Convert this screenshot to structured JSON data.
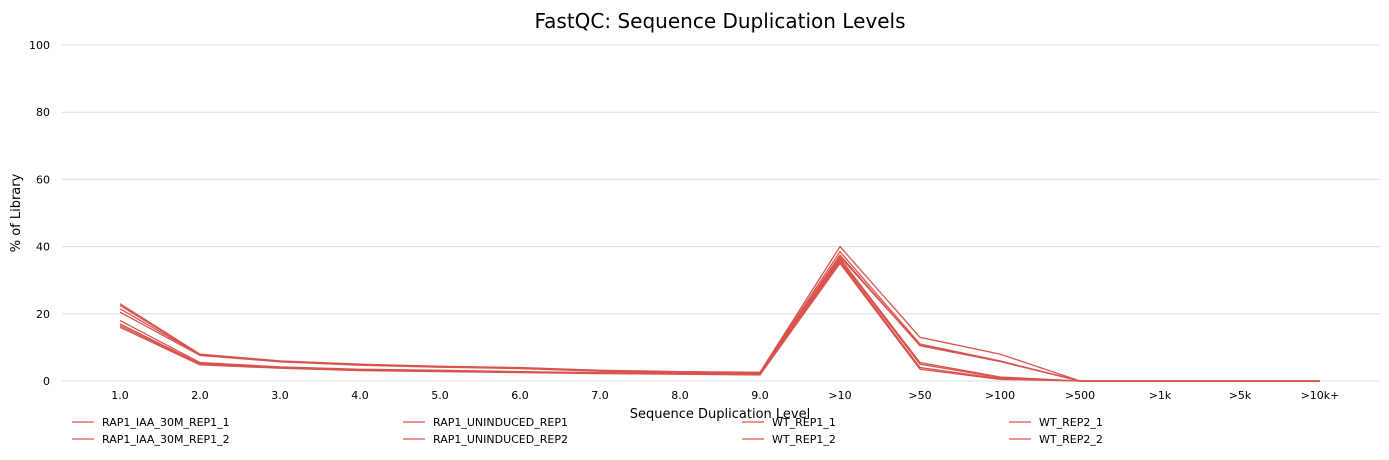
{
  "chart_data": {
    "type": "line",
    "title": "FastQC: Sequence Duplication Levels",
    "xlabel": "Sequence Duplication Level",
    "ylabel": "% of Library",
    "ylim": [
      0,
      100
    ],
    "yticks": [
      0,
      20,
      40,
      60,
      80,
      100
    ],
    "categories": [
      "1.0",
      "2.0",
      "3.0",
      "4.0",
      "5.0",
      "6.0",
      "7.0",
      "8.0",
      "9.0",
      ">10",
      ">50",
      ">100",
      ">500",
      ">1k",
      ">5k",
      ">10k+"
    ],
    "grid": true,
    "legend_position": "bottom",
    "series_color": "#d9534f",
    "series": [
      {
        "name": "RAP1_IAA_30M_REP1_1",
        "values": [
          23.0,
          8.0,
          6.0,
          5.0,
          4.4,
          4.0,
          3.2,
          2.8,
          2.6,
          40.0,
          13.0,
          8.0,
          0.0,
          0.0,
          0.0,
          0.0
        ]
      },
      {
        "name": "RAP1_IAA_30M_REP1_2",
        "values": [
          22.5,
          7.9,
          5.9,
          4.9,
          4.3,
          3.9,
          3.1,
          2.7,
          2.5,
          38.5,
          11.0,
          6.0,
          0.0,
          0.0,
          0.0,
          0.0
        ]
      },
      {
        "name": "RAP1_UNINDUCED_REP1",
        "values": [
          21.5,
          7.8,
          5.8,
          4.8,
          4.2,
          3.8,
          3.0,
          2.6,
          2.4,
          37.5,
          10.5,
          5.8,
          0.0,
          0.0,
          0.0,
          0.0
        ]
      },
      {
        "name": "RAP1_UNINDUCED_REP2",
        "values": [
          20.5,
          7.6,
          5.7,
          4.7,
          4.1,
          3.7,
          2.9,
          2.5,
          2.3,
          37.0,
          10.6,
          5.9,
          0.0,
          0.0,
          0.0,
          0.0
        ]
      },
      {
        "name": "WT_REP1_1",
        "values": [
          18.0,
          5.5,
          4.2,
          3.5,
          3.2,
          2.8,
          2.5,
          2.3,
          2.1,
          36.5,
          5.5,
          1.2,
          0.0,
          0.0,
          0.0,
          0.0
        ]
      },
      {
        "name": "WT_REP1_2",
        "values": [
          17.0,
          5.2,
          4.0,
          3.3,
          3.0,
          2.7,
          2.4,
          2.2,
          2.0,
          36.0,
          5.0,
          1.0,
          0.0,
          0.0,
          0.0,
          0.0
        ]
      },
      {
        "name": "WT_REP2_1",
        "values": [
          16.5,
          5.0,
          3.9,
          3.2,
          2.9,
          2.6,
          2.3,
          2.1,
          1.9,
          35.5,
          4.0,
          0.7,
          0.0,
          0.0,
          0.0,
          0.0
        ]
      },
      {
        "name": "WT_REP2_2",
        "values": [
          16.0,
          4.8,
          3.8,
          3.1,
          2.8,
          2.5,
          2.2,
          2.0,
          1.8,
          35.0,
          3.5,
          0.5,
          0.0,
          0.0,
          0.0,
          0.0
        ]
      }
    ]
  }
}
